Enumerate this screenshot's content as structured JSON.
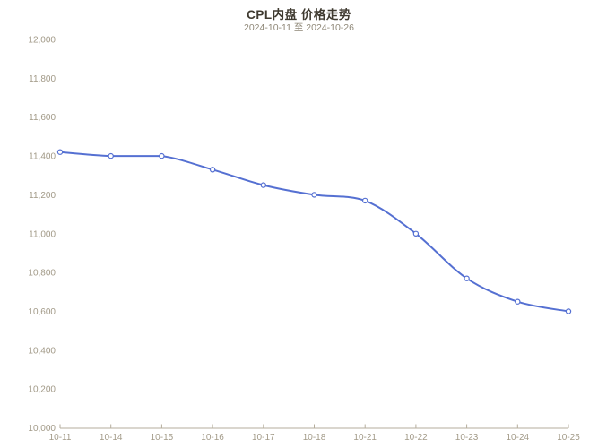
{
  "chart_data": {
    "type": "line",
    "title": "CPL内盘 价格走势",
    "subtitle": "2024-10-11 至 2024-10-26",
    "categories": [
      "10-11",
      "10-14",
      "10-15",
      "10-16",
      "10-17",
      "10-18",
      "10-21",
      "10-22",
      "10-23",
      "10-24",
      "10-25"
    ],
    "values": [
      11420,
      11400,
      11400,
      11330,
      11250,
      11200,
      11170,
      11000,
      10770,
      10650,
      10600
    ],
    "xlabel": "",
    "ylabel": "",
    "ylim": [
      10000,
      12000
    ],
    "ytick_step": 200,
    "ytick_labels": [
      "10,000",
      "10,200",
      "10,400",
      "10,600",
      "10,800",
      "11,000",
      "11,200",
      "11,400",
      "11,600",
      "11,800",
      "12,000"
    ],
    "grid": false,
    "legend_position": "none",
    "smooth": true,
    "marker": "hollow-circle",
    "colors": {
      "line": "#5570d2",
      "marker_fill": "#ffffff",
      "title": "#3f3a30",
      "subtitle": "#8f8878",
      "axis_label": "#a29a88",
      "axis_line": "#b5ad9c",
      "background": "#ffffff"
    }
  }
}
